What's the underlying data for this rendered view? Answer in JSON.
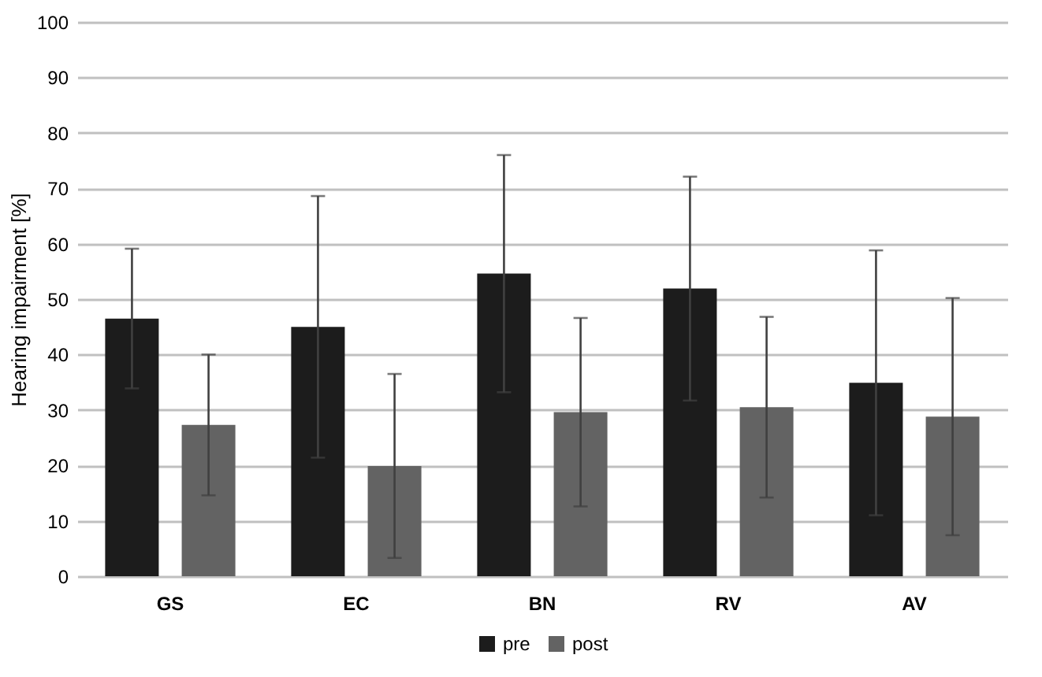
{
  "chart_data": {
    "type": "bar",
    "ylabel": "Hearing impairment [%]",
    "categories": [
      "GS",
      "EC",
      "BN",
      "RV",
      "AV"
    ],
    "series": [
      {
        "name": "pre",
        "color": "#1c1c1c",
        "values": [
          46.5,
          45,
          54.6,
          51.9,
          34.9
        ],
        "errors": [
          12.6,
          23.6,
          21.4,
          20.2,
          23.9
        ]
      },
      {
        "name": "post",
        "color": "#636363",
        "values": [
          27.3,
          19.9,
          29.6,
          30.5,
          28.8
        ],
        "errors": [
          12.7,
          16.6,
          17,
          16.3,
          21.4
        ]
      }
    ],
    "ylim": [
      0,
      100
    ],
    "yticks": [
      0,
      10,
      20,
      30,
      40,
      50,
      60,
      70,
      80,
      90,
      100
    ],
    "grid": "y",
    "legend": "bottom"
  }
}
